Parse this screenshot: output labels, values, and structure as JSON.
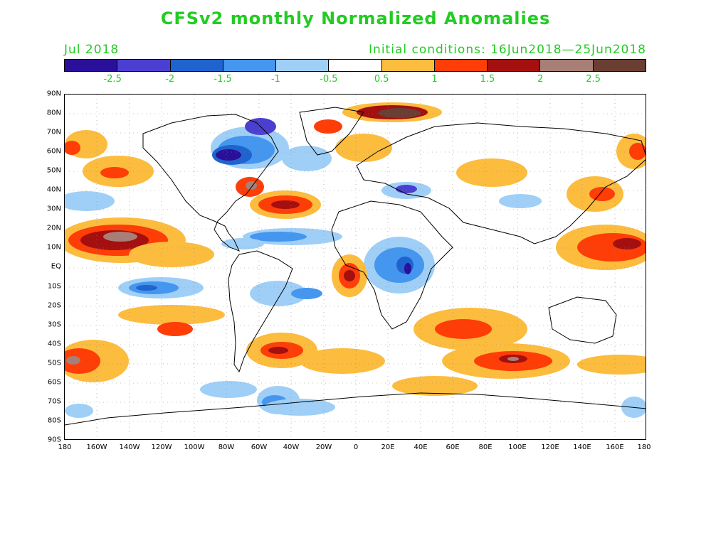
{
  "title": "CFSv2 monthly Normalized Anomalies",
  "subtitle_left": "Jul 2018",
  "subtitle_right": "Initial conditions: 16Jun2018—25Jun2018",
  "colorbar": {
    "colors": [
      "#2a0f9a",
      "#4b3fd1",
      "#1f63cf",
      "#4596ee",
      "#9fcff7",
      "#ffffff",
      "#fcbc3d",
      "#fe3d07",
      "#a40f0f",
      "#a87f76",
      "#6b3e34"
    ],
    "labels": [
      "-2.5",
      "-2",
      "-1.5",
      "-1",
      "-0.5",
      "0.5",
      "1",
      "1.5",
      "2",
      "2.5"
    ]
  },
  "lat_labels": [
    "90N",
    "80N",
    "70N",
    "60N",
    "50N",
    "40N",
    "30N",
    "20N",
    "10N",
    "EQ",
    "10S",
    "20S",
    "30S",
    "40S",
    "50S",
    "60S",
    "70S",
    "80S",
    "90S"
  ],
  "lon_labels": [
    "180",
    "160W",
    "140W",
    "120W",
    "100W",
    "80W",
    "60W",
    "40W",
    "20W",
    "0",
    "20E",
    "40E",
    "60E",
    "80E",
    "100E",
    "120E",
    "140E",
    "160E",
    "180"
  ]
}
